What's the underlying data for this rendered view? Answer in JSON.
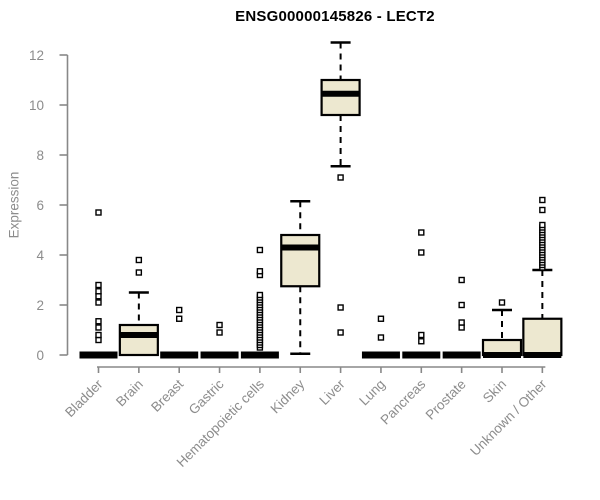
{
  "chart_data": {
    "type": "boxplot",
    "title": "ENSG00000145826 - LECT2",
    "ylabel": "Expression",
    "ylim": [
      0,
      12.5
    ],
    "yticks": [
      0,
      2,
      4,
      6,
      8,
      10,
      12
    ],
    "grid": false,
    "legend": "none",
    "categories": [
      "Bladder",
      "Brain",
      "Breast",
      "Gastric",
      "Hematopoietic cells",
      "Kidney",
      "Liver",
      "Lung",
      "Pancreas",
      "Prostate",
      "Skin",
      "Unknown / Other"
    ],
    "series": [
      {
        "category": "Bladder",
        "min": 0,
        "q1": 0,
        "median": 0,
        "q3": 0,
        "max": 0,
        "outliers": [
          0.6,
          0.8,
          1.1,
          1.35,
          2.1,
          2.35,
          2.55,
          2.8,
          5.7
        ]
      },
      {
        "category": "Brain",
        "min": 0,
        "q1": 0,
        "median": 0.8,
        "q3": 1.2,
        "max": 2.5,
        "outliers": [
          3.3,
          3.8
        ]
      },
      {
        "category": "Breast",
        "min": 0,
        "q1": 0,
        "median": 0,
        "q3": 0,
        "max": 0,
        "outliers": [
          1.45,
          1.8
        ]
      },
      {
        "category": "Gastric",
        "min": 0,
        "q1": 0,
        "median": 0,
        "q3": 0,
        "max": 0,
        "outliers": [
          0.9,
          1.2
        ]
      },
      {
        "category": "Hematopoietic cells",
        "min": 0,
        "q1": 0,
        "median": 0,
        "q3": 0,
        "max": 0,
        "outliers": [
          0.3,
          0.4,
          0.5,
          0.6,
          0.7,
          0.8,
          0.9,
          1.0,
          1.1,
          1.2,
          1.3,
          1.4,
          1.5,
          1.6,
          1.7,
          1.8,
          1.9,
          2.0,
          2.1,
          2.2,
          2.3,
          2.4,
          3.2,
          3.35,
          4.2
        ]
      },
      {
        "category": "Kidney",
        "min": 0.05,
        "q1": 2.75,
        "median": 4.3,
        "q3": 4.8,
        "max": 6.15,
        "outliers": []
      },
      {
        "category": "Liver",
        "min": 7.55,
        "q1": 9.6,
        "median": 10.45,
        "q3": 11.0,
        "max": 12.5,
        "outliers": [
          7.1,
          1.9,
          0.9
        ]
      },
      {
        "category": "Lung",
        "min": 0,
        "q1": 0,
        "median": 0,
        "q3": 0,
        "max": 0,
        "outliers": [
          0.7,
          1.45
        ]
      },
      {
        "category": "Pancreas",
        "min": 0,
        "q1": 0,
        "median": 0,
        "q3": 0,
        "max": 0,
        "outliers": [
          0.55,
          0.8,
          4.1,
          4.9
        ]
      },
      {
        "category": "Prostate",
        "min": 0,
        "q1": 0,
        "median": 0,
        "q3": 0,
        "max": 0,
        "outliers": [
          1.1,
          1.3,
          2.0,
          3.0
        ]
      },
      {
        "category": "Skin",
        "min": 0,
        "q1": 0,
        "median": 0,
        "q3": 0.6,
        "max": 1.8,
        "outliers": [
          2.1
        ]
      },
      {
        "category": "Unknown / Other",
        "min": 0,
        "q1": 0,
        "median": 0,
        "q3": 1.45,
        "max": 3.4,
        "outliers": [
          3.5,
          3.6,
          3.7,
          3.8,
          3.9,
          4.0,
          4.1,
          4.2,
          4.3,
          4.4,
          4.5,
          4.6,
          4.7,
          4.8,
          4.9,
          5.0,
          5.1,
          5.2,
          5.8,
          6.2
        ]
      }
    ],
    "colors": {
      "box_fill": "#EDE8D0",
      "box_stroke": "#000000",
      "median": "#000000",
      "whisker": "#000000",
      "outlier_fill": "#ffffff",
      "axis": "#888888",
      "tick_label": "#8c8c8c",
      "title": "#000000",
      "background": "#ffffff"
    }
  }
}
